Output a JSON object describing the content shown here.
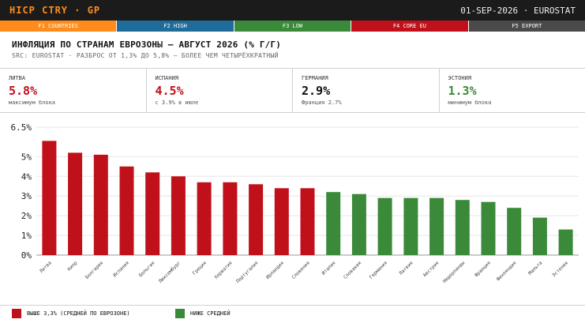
{
  "topbar": {
    "left": "HICP CTRY · GP",
    "right": "01-SEP-2026 · EUROSTAT"
  },
  "fkeys": [
    {
      "label": "F1 COUNTRIES",
      "color": "#ff8c1a"
    },
    {
      "label": "F2 HIGH",
      "color": "#1f6b99"
    },
    {
      "label": "F3 LOW",
      "color": "#3a8a3a"
    },
    {
      "label": "F4 CORE EU",
      "color": "#c0101a"
    },
    {
      "label": "F5 EXPORT",
      "color": "#4a4a4a"
    }
  ],
  "header": {
    "title": "ИНФЛЯЦИЯ ПО СТРАНАМ ЕВРОЗОНЫ — АВГУСТ 2026 (% Г/Г)",
    "subtitle": "SRC: EUROSTAT · РАЗБРОС ОТ 1,3% ДО 5,8% — БОЛЕЕ ЧЕМ ЧЕТЫРЁХКРАТНЫЙ"
  },
  "stats": [
    {
      "label": "ЛИТВА",
      "value": "5.8%",
      "note": "максимум блока",
      "color": "#c0101a"
    },
    {
      "label": "ИСПАНИЯ",
      "value": "4.5%",
      "note": "с 3.9% в июле",
      "color": "#c0101a"
    },
    {
      "label": "ГЕРМАНИЯ",
      "value": "2.9%",
      "note": "Франция 2.7%",
      "color": "#111111"
    },
    {
      "label": "ЭСТОНИЯ",
      "value": "1.3%",
      "note": "минимум блока",
      "color": "#3a8a3a"
    }
  ],
  "legend": {
    "above_label": "ВЫШЕ 3,3% (СРЕДНЕЙ ПО ЕВРОЗОНЕ)",
    "below_label": "НИЖЕ СРЕДНЕЙ"
  },
  "chart_data": {
    "type": "bar",
    "categories": [
      "Литва",
      "Кипр",
      "Болгария",
      "Испания",
      "Бельгия",
      "Люксембург",
      "Греция",
      "Хорватия",
      "Португалия",
      "Ирландия",
      "Словения",
      "Италия",
      "Словакия",
      "Германия",
      "Латвия",
      "Австрия",
      "Нидерланды",
      "Франция",
      "Финляндия",
      "Мальта",
      "Эстония"
    ],
    "values": [
      5.8,
      5.2,
      5.1,
      4.5,
      4.2,
      4.0,
      3.7,
      3.7,
      3.6,
      3.4,
      3.4,
      3.2,
      3.1,
      2.9,
      2.9,
      2.9,
      2.8,
      2.7,
      2.4,
      1.9,
      1.3
    ],
    "threshold": 3.3,
    "ylim": [
      0,
      6.5
    ],
    "yticks": [
      0,
      1,
      2,
      3,
      4,
      5,
      6.5
    ],
    "ytick_labels": [
      "0%",
      "1%",
      "2%",
      "3%",
      "4%",
      "5%",
      "6.5%"
    ],
    "colors": {
      "above": "#c0101a",
      "below": "#3a8a3a"
    },
    "grid": true
  }
}
